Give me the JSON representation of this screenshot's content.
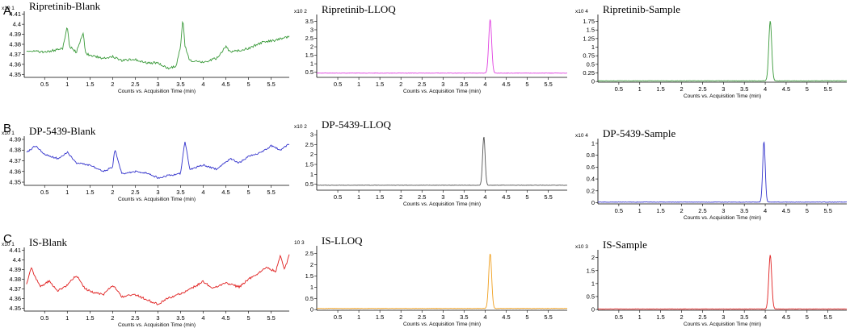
{
  "chart_data": [
    {
      "type": "line",
      "row_label": "A",
      "title": "Ripretinib-Blank",
      "multiplier": "x10 1",
      "color": "#3a9a3a",
      "xlabel": "Counts vs. Acquisition Time (min)",
      "xticks": [
        "0.5",
        "1",
        "1.5",
        "2",
        "2.5",
        "3",
        "3.5",
        "4",
        "4.5",
        "5",
        "5.5"
      ],
      "xtick_values": [
        0.5,
        1,
        1.5,
        2,
        2.5,
        3,
        3.5,
        4,
        4.5,
        5,
        5.5
      ],
      "yticks": [
        "4.35",
        "4.36",
        "4.37",
        "4.38",
        "4.39",
        "4.4",
        "4.41"
      ],
      "ytick_values": [
        4.35,
        4.36,
        4.37,
        4.38,
        4.39,
        4.4,
        4.41
      ],
      "xlim": [
        0.05,
        5.9
      ],
      "ylim": [
        4.347,
        4.413
      ],
      "baseline": null,
      "peak": null,
      "series": {
        "x": [
          0.1,
          0.5,
          0.9,
          1.0,
          1.05,
          1.2,
          1.35,
          1.4,
          1.5,
          1.8,
          2.0,
          2.2,
          2.5,
          2.8,
          3.0,
          3.2,
          3.4,
          3.5,
          3.55,
          3.6,
          3.7,
          4.0,
          4.3,
          4.5,
          4.6,
          5.0,
          5.3,
          5.6,
          5.9
        ],
        "y": [
          4.374,
          4.372,
          4.376,
          4.398,
          4.378,
          4.372,
          4.392,
          4.371,
          4.369,
          4.366,
          4.368,
          4.364,
          4.365,
          4.361,
          4.362,
          4.356,
          4.358,
          4.378,
          4.406,
          4.378,
          4.364,
          4.362,
          4.366,
          4.378,
          4.372,
          4.376,
          4.382,
          4.384,
          4.388
        ]
      }
    },
    {
      "type": "line",
      "title": "Ripretinib-LLOQ",
      "multiplier": "x10 2",
      "color": "#e040e0",
      "xlabel": "Counts vs. Acquisition Time (min)",
      "xticks": [
        "0.5",
        "1",
        "1.5",
        "2",
        "2.5",
        "3",
        "3.5",
        "4",
        "4.5",
        "5",
        "5.5"
      ],
      "xtick_values": [
        0.5,
        1,
        1.5,
        2,
        2.5,
        3,
        3.5,
        4,
        4.5,
        5,
        5.5
      ],
      "yticks": [
        "0.5",
        "1",
        "1.5",
        "2",
        "2.5",
        "3",
        "3.5"
      ],
      "ytick_values": [
        0.5,
        1,
        1.5,
        2,
        2.5,
        3,
        3.5
      ],
      "xlim": [
        0.0,
        5.95
      ],
      "ylim": [
        0.2,
        3.9
      ],
      "baseline": 0.45,
      "peak": {
        "x": 4.12,
        "y": 3.6,
        "width": 0.035
      }
    },
    {
      "type": "line",
      "title": "Ripretinib-Sample",
      "multiplier": "x10 4",
      "color": "#3a9a3a",
      "xlabel": "Counts vs. Acquisition Time (min)",
      "xticks": [
        "0.5",
        "1",
        "1.5",
        "2",
        "2.5",
        "3",
        "3.5",
        "4",
        "4.5",
        "5",
        "5.5"
      ],
      "xtick_values": [
        0.5,
        1,
        1.5,
        2,
        2.5,
        3,
        3.5,
        4,
        4.5,
        5,
        5.5
      ],
      "yticks": [
        "0",
        "0.25",
        "0.5",
        "0.75",
        "1",
        "1.25",
        "1.5",
        "1.75"
      ],
      "ytick_values": [
        0,
        0.25,
        0.5,
        0.75,
        1,
        1.25,
        1.5,
        1.75
      ],
      "xlim": [
        0.0,
        5.95
      ],
      "ylim": [
        -0.02,
        1.95
      ],
      "baseline": 0.02,
      "peak": {
        "x": 4.12,
        "y": 1.76,
        "width": 0.035
      }
    },
    {
      "type": "line",
      "row_label": "B",
      "title": "DP-5439-Blank",
      "multiplier": "x10 1",
      "color": "#3333cc",
      "xlabel": "Counts vs. Acquisition Time (min)",
      "xticks": [
        "0.5",
        "1",
        "1.5",
        "2",
        "2.5",
        "3",
        "3.5",
        "4",
        "4.5",
        "5",
        "5.5"
      ],
      "xtick_values": [
        0.5,
        1,
        1.5,
        2,
        2.5,
        3,
        3.5,
        4,
        4.5,
        5,
        5.5
      ],
      "yticks": [
        "4.35",
        "4.36",
        "4.37",
        "4.38",
        "4.39"
      ],
      "ytick_values": [
        4.35,
        4.36,
        4.37,
        4.38,
        4.39
      ],
      "xlim": [
        0.05,
        5.9
      ],
      "ylim": [
        4.347,
        4.393
      ],
      "baseline": null,
      "peak": null,
      "series": {
        "x": [
          0.1,
          0.3,
          0.5,
          0.8,
          1.0,
          1.2,
          1.5,
          1.8,
          2.0,
          2.05,
          2.2,
          2.5,
          2.8,
          3.0,
          3.2,
          3.5,
          3.6,
          3.7,
          4.0,
          4.3,
          4.6,
          4.8,
          5.0,
          5.3,
          5.5,
          5.7,
          5.9
        ],
        "y": [
          4.378,
          4.384,
          4.376,
          4.372,
          4.378,
          4.368,
          4.366,
          4.36,
          4.364,
          4.381,
          4.358,
          4.36,
          4.358,
          4.354,
          4.356,
          4.358,
          4.389,
          4.362,
          4.366,
          4.362,
          4.372,
          4.368,
          4.374,
          4.378,
          4.384,
          4.38,
          4.386
        ]
      }
    },
    {
      "type": "line",
      "title": "DP-5439-LLOQ",
      "multiplier": "x10 2",
      "color": "#555555",
      "xlabel": "Counts vs. Acquisition Time (min)",
      "xticks": [
        "0.5",
        "1",
        "1.5",
        "2",
        "2.5",
        "3",
        "3.5",
        "4",
        "4.5",
        "5",
        "5.5"
      ],
      "xtick_values": [
        0.5,
        1,
        1.5,
        2,
        2.5,
        3,
        3.5,
        4,
        4.5,
        5,
        5.5
      ],
      "yticks": [
        "0.5",
        "1",
        "1.5",
        "2",
        "2.5",
        "3"
      ],
      "ytick_values": [
        0.5,
        1,
        1.5,
        2,
        2.5,
        3
      ],
      "xlim": [
        0.0,
        5.95
      ],
      "ylim": [
        0.2,
        3.25
      ],
      "baseline": 0.45,
      "peak": {
        "x": 3.97,
        "y": 2.9,
        "width": 0.03
      }
    },
    {
      "type": "line",
      "title": "DP-5439-Sample",
      "multiplier": "x10 4",
      "color": "#3333cc",
      "xlabel": "Counts vs. Acquisition Time (min)",
      "xticks": [
        "0.5",
        "1",
        "1.5",
        "2",
        "2.5",
        "3",
        "3.5",
        "4",
        "4.5",
        "5",
        "5.5"
      ],
      "xtick_values": [
        0.5,
        1,
        1.5,
        2,
        2.5,
        3,
        3.5,
        4,
        4.5,
        5,
        5.5
      ],
      "yticks": [
        "0",
        "0.2",
        "0.4",
        "0.6",
        "0.8",
        "1"
      ],
      "ytick_values": [
        0,
        0.2,
        0.4,
        0.6,
        0.8,
        1.0
      ],
      "xlim": [
        0.0,
        5.95
      ],
      "ylim": [
        -0.02,
        1.08
      ],
      "baseline": 0.01,
      "peak": {
        "x": 3.97,
        "y": 1.03,
        "width": 0.03
      }
    },
    {
      "type": "line",
      "row_label": "C",
      "title": "IS-Blank",
      "multiplier": "x10 1",
      "color": "#e02020",
      "xlabel": "Counts vs. Acquisition Time (min)",
      "xticks": [
        "0.5",
        "1",
        "1.5",
        "2",
        "2.5",
        "3",
        "3.5",
        "4",
        "4.5",
        "5",
        "5.5"
      ],
      "xtick_values": [
        0.5,
        1,
        1.5,
        2,
        2.5,
        3,
        3.5,
        4,
        4.5,
        5,
        5.5
      ],
      "yticks": [
        "4.35",
        "4.36",
        "4.37",
        "4.38",
        "4.39",
        "4.4",
        "4.41"
      ],
      "ytick_values": [
        4.35,
        4.36,
        4.37,
        4.38,
        4.39,
        4.4,
        4.41
      ],
      "xlim": [
        0.05,
        5.9
      ],
      "ylim": [
        4.347,
        4.413
      ],
      "baseline": null,
      "peak": null,
      "series": {
        "x": [
          0.1,
          0.2,
          0.4,
          0.6,
          0.8,
          1.0,
          1.2,
          1.4,
          1.6,
          1.8,
          2.0,
          2.2,
          2.5,
          2.8,
          3.0,
          3.2,
          3.5,
          3.8,
          4.0,
          4.2,
          4.5,
          4.8,
          5.0,
          5.2,
          5.4,
          5.6,
          5.7,
          5.8,
          5.9
        ],
        "y": [
          4.374,
          4.392,
          4.372,
          4.378,
          4.368,
          4.374,
          4.384,
          4.37,
          4.366,
          4.364,
          4.374,
          4.362,
          4.364,
          4.358,
          4.354,
          4.36,
          4.365,
          4.372,
          4.378,
          4.37,
          4.376,
          4.372,
          4.38,
          4.386,
          4.392,
          4.388,
          4.404,
          4.39,
          4.406
        ]
      }
    },
    {
      "type": "line",
      "title": "IS-LLOQ",
      "multiplier": "10 3",
      "color": "#f0a020",
      "xlabel": "Counts vs. Acquisition Time (min)",
      "xticks": [
        "0.5",
        "1",
        "1.5",
        "2",
        "2.5",
        "3",
        "3.5",
        "4",
        "4.5",
        "5",
        "5.5"
      ],
      "xtick_values": [
        0.5,
        1,
        1.5,
        2,
        2.5,
        3,
        3.5,
        4,
        4.5,
        5,
        5.5
      ],
      "yticks": [
        "0",
        "0.5",
        "1",
        "1.5",
        "2",
        "2.5"
      ],
      "ytick_values": [
        0,
        0.5,
        1,
        1.5,
        2,
        2.5
      ],
      "xlim": [
        0.0,
        5.95
      ],
      "ylim": [
        -0.03,
        2.85
      ],
      "baseline": 0.05,
      "peak": {
        "x": 4.12,
        "y": 2.5,
        "width": 0.035
      }
    },
    {
      "type": "line",
      "title": "IS-Sample",
      "multiplier": "x10 3",
      "color": "#e02020",
      "xlabel": "Counts vs. Acquisition Time (min)",
      "xticks": [
        "0.5",
        "1",
        "1.5",
        "2",
        "2.5",
        "3",
        "3.5",
        "4",
        "4.5",
        "5",
        "5.5"
      ],
      "xtick_values": [
        0.5,
        1,
        1.5,
        2,
        2.5,
        3,
        3.5,
        4,
        4.5,
        5,
        5.5
      ],
      "yticks": [
        "0",
        "0.5",
        "1",
        "1.5",
        "2"
      ],
      "ytick_values": [
        0,
        0.5,
        1,
        1.5,
        2
      ],
      "xlim": [
        0.0,
        5.95
      ],
      "ylim": [
        -0.03,
        2.3
      ],
      "baseline": 0.02,
      "peak": {
        "x": 4.12,
        "y": 2.1,
        "width": 0.035
      }
    }
  ]
}
